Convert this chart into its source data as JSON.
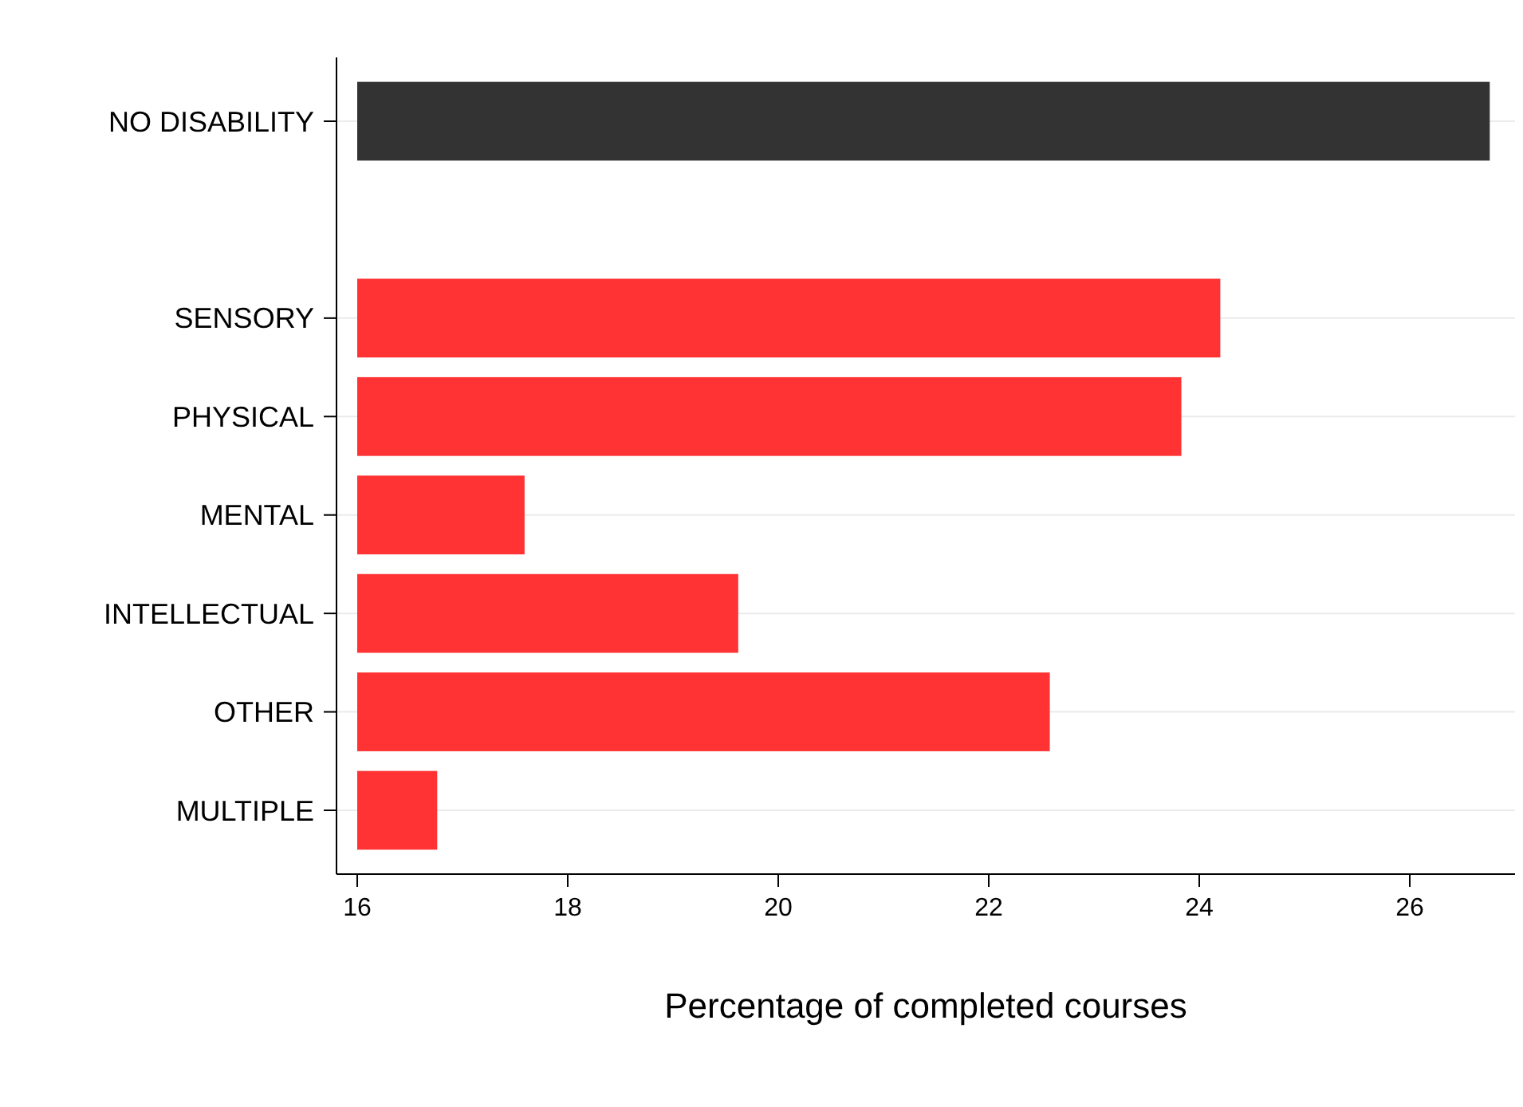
{
  "chart_data": {
    "type": "bar",
    "orientation": "horizontal",
    "xlabel": "Percentage of completed courses",
    "categories": [
      "NO DISABILITY",
      null,
      "SENSORY",
      "PHYSICAL",
      "MENTAL",
      "INTELLECTUAL",
      "OTHER",
      "MULTIPLE"
    ],
    "values": [
      26.76,
      null,
      24.2,
      23.83,
      17.59,
      19.62,
      22.58,
      16.76
    ],
    "colors": [
      "#333333",
      null,
      "#ff3333",
      "#ff3333",
      "#ff3333",
      "#ff3333",
      "#ff3333",
      "#ff3333"
    ],
    "xlim": [
      16,
      27
    ],
    "xticks": [
      16,
      18,
      20,
      22,
      24,
      26
    ],
    "grid": "y"
  }
}
